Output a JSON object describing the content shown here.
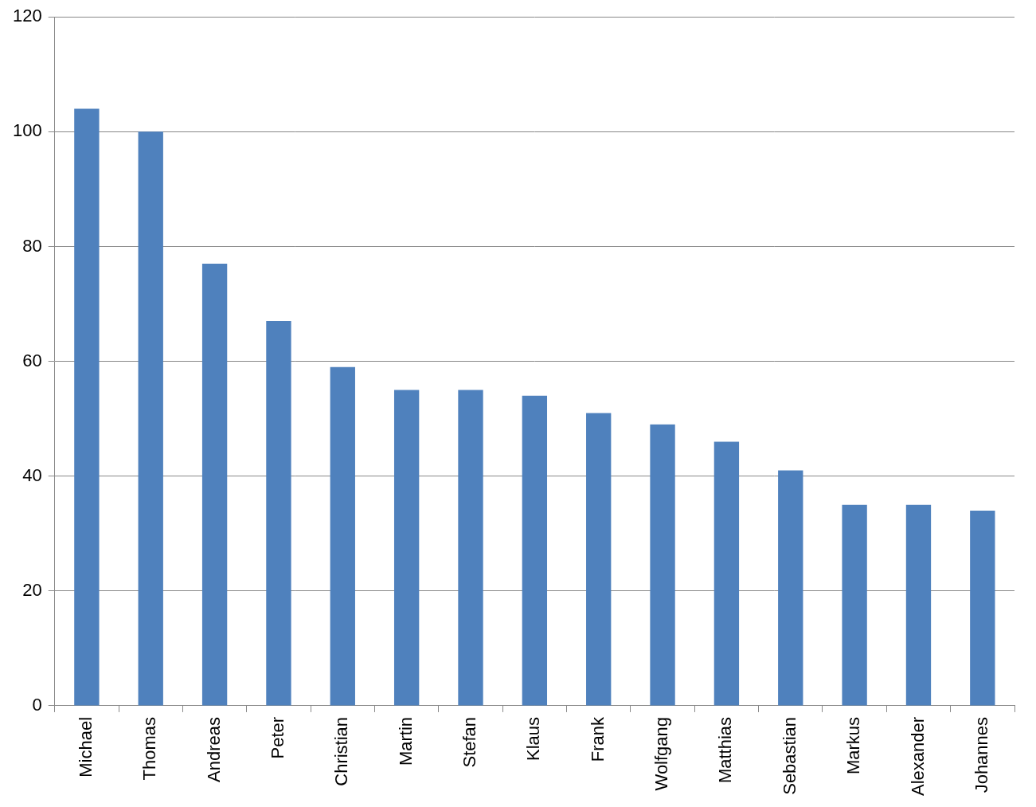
{
  "chart_data": {
    "type": "bar",
    "categories": [
      "Michael",
      "Thomas",
      "Andreas",
      "Peter",
      "Christian",
      "Martin",
      "Stefan",
      "Klaus",
      "Frank",
      "Wolfgang",
      "Matthias",
      "Sebastian",
      "Markus",
      "Alexander",
      "Johannes"
    ],
    "values": [
      104,
      100,
      77,
      67,
      59,
      55,
      55,
      54,
      51,
      49,
      46,
      41,
      35,
      35,
      34
    ],
    "color": "#4f81bd",
    "ylim": [
      0,
      120
    ],
    "yticks": [
      0,
      20,
      40,
      60,
      80,
      100,
      120
    ],
    "grid": true
  }
}
